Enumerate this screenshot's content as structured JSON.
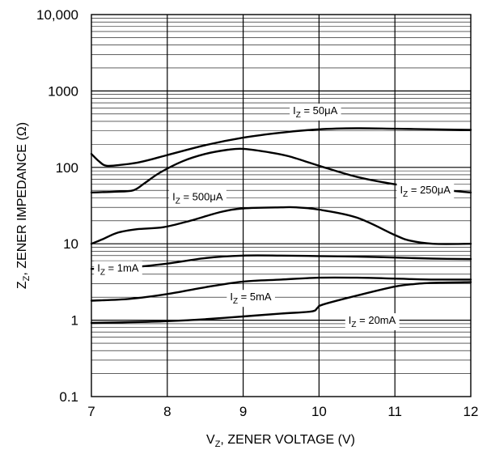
{
  "chart_data": {
    "type": "line",
    "xlabel": "V₂, ZENER VOLTAGE (V)",
    "xlabel_parts": {
      "main": "V",
      "sub": "Z",
      "rest": ", ZENER VOLTAGE (V)"
    },
    "ylabel_parts": {
      "main": "Z",
      "sub": "Z",
      "rest": ", ZENER IMPEDANCE (Ω)"
    },
    "xlim": [
      7,
      12
    ],
    "ylim": [
      0.1,
      10000
    ],
    "yscale": "log",
    "grid": true,
    "x_ticks": [
      "7",
      "8",
      "9",
      "10",
      "11",
      "12"
    ],
    "y_ticks": [
      {
        "value": 0.1,
        "label": "0.1"
      },
      {
        "value": 1,
        "label": "1"
      },
      {
        "value": 10,
        "label": "10"
      },
      {
        "value": 100,
        "label": "100"
      },
      {
        "value": 1000,
        "label": "1000"
      },
      {
        "value": 10000,
        "label": "10,000"
      }
    ],
    "series": [
      {
        "label": {
          "main": "I",
          "sub": "Z",
          "rest": " = 50μA"
        },
        "label_at": {
          "x": 9.95,
          "y": 550
        },
        "x": [
          7.0,
          7.1,
          7.2,
          7.4,
          7.6,
          7.8,
          8.0,
          8.5,
          9.0,
          9.5,
          10.0,
          10.5,
          11.0,
          11.5,
          12.0
        ],
        "y": [
          150,
          120,
          105,
          108,
          115,
          128,
          145,
          195,
          245,
          285,
          315,
          325,
          320,
          315,
          310
        ]
      },
      {
        "label": {
          "main": "I",
          "sub": "Z",
          "rest": " = 250μA"
        },
        "label_at": {
          "x": 11.4,
          "y": 50
        },
        "x": [
          7.0,
          7.3,
          7.55,
          7.7,
          7.9,
          8.2,
          8.5,
          8.8,
          9.0,
          9.3,
          9.6,
          10.0,
          10.5,
          11.0,
          11.5,
          12.0
        ],
        "y": [
          47,
          48,
          50,
          62,
          85,
          120,
          150,
          170,
          175,
          160,
          140,
          105,
          75,
          60,
          52,
          47
        ]
      },
      {
        "label": {
          "main": "I",
          "sub": "Z",
          "rest": " = 500μA"
        },
        "label_at": {
          "x": 8.4,
          "y": 41
        },
        "x": [
          7.0,
          7.15,
          7.35,
          7.6,
          7.95,
          8.3,
          8.7,
          9.0,
          9.5,
          9.7,
          10.0,
          10.5,
          11.0,
          11.2,
          11.5,
          12.0
        ],
        "y": [
          10,
          11.5,
          14,
          15.5,
          16.5,
          20,
          26,
          29,
          30,
          30,
          28,
          22,
          13,
          11,
          10,
          10
        ]
      },
      {
        "label": {
          "main": "I",
          "sub": "Z",
          "rest": " = 1mA"
        },
        "label_at": {
          "x": 7.35,
          "y": 4.8
        },
        "x": [
          7.0,
          7.5,
          8.0,
          8.5,
          9.0,
          9.5,
          10.0,
          10.5,
          11.0,
          11.5,
          12.0
        ],
        "y": [
          4.7,
          4.9,
          5.5,
          6.5,
          7.0,
          7.0,
          6.9,
          6.8,
          6.6,
          6.4,
          6.3
        ]
      },
      {
        "label": {
          "main": "I",
          "sub": "Z",
          "rest": " = 5mA"
        },
        "label_at": {
          "x": 9.1,
          "y": 2.0
        },
        "x": [
          7.0,
          7.5,
          8.0,
          8.5,
          9.0,
          9.5,
          10.0,
          10.5,
          11.0,
          11.5,
          12.0
        ],
        "y": [
          1.8,
          1.9,
          2.2,
          2.7,
          3.2,
          3.4,
          3.6,
          3.6,
          3.5,
          3.4,
          3.4
        ]
      },
      {
        "label": {
          "main": "I",
          "sub": "Z",
          "rest": " = 20mA"
        },
        "label_at": {
          "x": 10.7,
          "y": 0.99
        },
        "x": [
          7.0,
          7.5,
          8.0,
          8.5,
          9.0,
          9.5,
          9.9,
          9.98,
          10.05,
          10.5,
          11.0,
          11.3,
          11.6,
          12.0
        ],
        "y": [
          0.92,
          0.94,
          0.97,
          1.03,
          1.12,
          1.22,
          1.3,
          1.45,
          1.6,
          2.1,
          2.75,
          3.0,
          3.1,
          3.15
        ]
      }
    ]
  }
}
